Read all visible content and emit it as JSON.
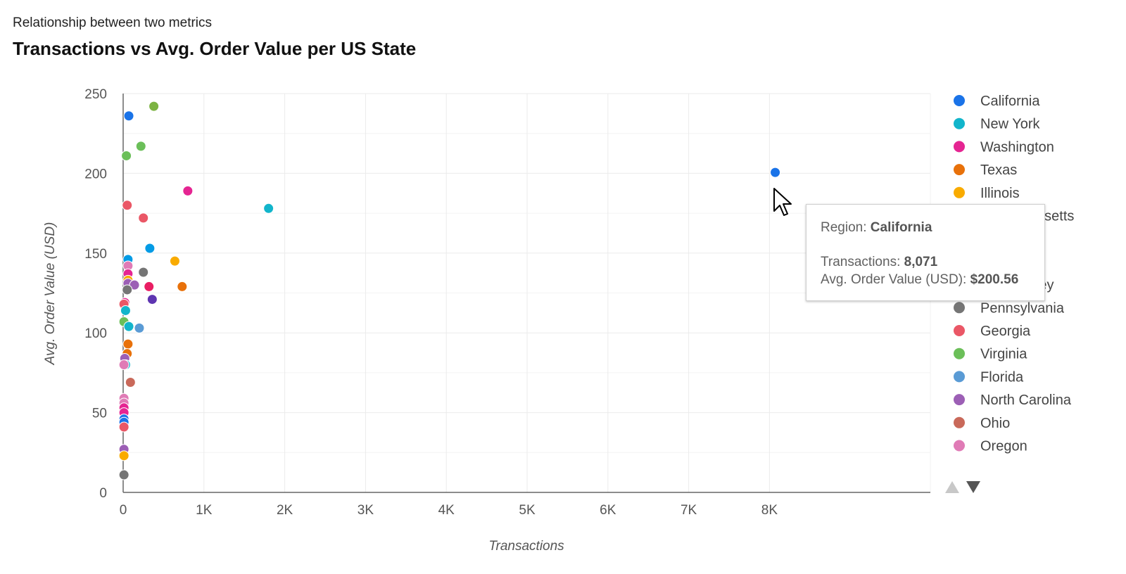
{
  "subtitle": "Relationship between two metrics",
  "title": "Transactions vs Avg. Order Value per US State",
  "chart_data": {
    "type": "scatter",
    "title": "Transactions vs Avg. Order Value per US State",
    "xlabel": "Transactions",
    "ylabel": "Avg. Order Value (USD)",
    "xlim": [
      0,
      10000
    ],
    "ylim": [
      0,
      250
    ],
    "x_ticks": [
      0,
      1000,
      2000,
      3000,
      4000,
      5000,
      6000,
      7000,
      8000
    ],
    "x_tick_labels": [
      "0",
      "1K",
      "2K",
      "3K",
      "4K",
      "5K",
      "6K",
      "7K",
      "8K"
    ],
    "y_ticks": [
      0,
      50,
      100,
      150,
      200,
      250
    ],
    "y_tick_labels": [
      "0",
      "50",
      "100",
      "150",
      "200",
      "250"
    ],
    "grid": true,
    "legend_position": "right",
    "legend": [
      {
        "name": "California",
        "color": "#1a73e8"
      },
      {
        "name": "New York",
        "color": "#12b5cb"
      },
      {
        "name": "Washington",
        "color": "#e52592"
      },
      {
        "name": "Texas",
        "color": "#e8710a"
      },
      {
        "name": "Illinois",
        "color": "#f9ab00"
      },
      {
        "name": "Massachusetts",
        "color": "#7cb342"
      },
      {
        "name": "",
        "color": "#5e35b1"
      },
      {
        "name": "",
        "color": "#039be5"
      },
      {
        "name": "New Jersey",
        "color": "#e91e63"
      },
      {
        "name": "Pennsylvania",
        "color": "#757575"
      },
      {
        "name": "Georgia",
        "color": "#ea5766"
      },
      {
        "name": "Virginia",
        "color": "#6bbf59"
      },
      {
        "name": "Florida",
        "color": "#5a9bd5"
      },
      {
        "name": "North Carolina",
        "color": "#9c5fb5"
      },
      {
        "name": "Ohio",
        "color": "#c9695a"
      },
      {
        "name": "Oregon",
        "color": "#e07bb6"
      }
    ],
    "points": [
      {
        "x": 8071,
        "y": 200.56,
        "color": "#1a73e8"
      },
      {
        "x": 70,
        "y": 236,
        "color": "#1a73e8"
      },
      {
        "x": 380,
        "y": 242,
        "color": "#7cb342"
      },
      {
        "x": 220,
        "y": 217,
        "color": "#6bbf59"
      },
      {
        "x": 40,
        "y": 211,
        "color": "#6bbf59"
      },
      {
        "x": 800,
        "y": 189,
        "color": "#e52592"
      },
      {
        "x": 1800,
        "y": 178,
        "color": "#12b5cb"
      },
      {
        "x": 50,
        "y": 180,
        "color": "#ea5766"
      },
      {
        "x": 250,
        "y": 172,
        "color": "#ea5766"
      },
      {
        "x": 330,
        "y": 153,
        "color": "#039be5"
      },
      {
        "x": 60,
        "y": 146,
        "color": "#039be5"
      },
      {
        "x": 640,
        "y": 145,
        "color": "#f9ab00"
      },
      {
        "x": 60,
        "y": 142,
        "color": "#e07bb6"
      },
      {
        "x": 250,
        "y": 138,
        "color": "#757575"
      },
      {
        "x": 60,
        "y": 137,
        "color": "#e52592"
      },
      {
        "x": 60,
        "y": 133,
        "color": "#f9ab00"
      },
      {
        "x": 60,
        "y": 131,
        "color": "#9c5fb5"
      },
      {
        "x": 140,
        "y": 130,
        "color": "#9c5fb5"
      },
      {
        "x": 320,
        "y": 129,
        "color": "#e91e63"
      },
      {
        "x": 730,
        "y": 129,
        "color": "#e8710a"
      },
      {
        "x": 50,
        "y": 127,
        "color": "#757575"
      },
      {
        "x": 360,
        "y": 121,
        "color": "#5e35b1"
      },
      {
        "x": 20,
        "y": 119,
        "color": "#e52592"
      },
      {
        "x": 10,
        "y": 118,
        "color": "#ea5766"
      },
      {
        "x": 30,
        "y": 114,
        "color": "#12b5cb"
      },
      {
        "x": 10,
        "y": 107,
        "color": "#6bbf59"
      },
      {
        "x": 70,
        "y": 104,
        "color": "#12b5cb"
      },
      {
        "x": 200,
        "y": 103,
        "color": "#5a9bd5"
      },
      {
        "x": 60,
        "y": 93,
        "color": "#e8710a"
      },
      {
        "x": 50,
        "y": 87,
        "color": "#e8710a"
      },
      {
        "x": 20,
        "y": 84,
        "color": "#9c5fb5"
      },
      {
        "x": 30,
        "y": 80,
        "color": "#12b5cb"
      },
      {
        "x": 10,
        "y": 80,
        "color": "#e07bb6"
      },
      {
        "x": 90,
        "y": 69,
        "color": "#c9695a"
      },
      {
        "x": 10,
        "y": 59,
        "color": "#e07bb6"
      },
      {
        "x": 10,
        "y": 56,
        "color": "#e07bb6"
      },
      {
        "x": 10,
        "y": 53,
        "color": "#e52592"
      },
      {
        "x": 10,
        "y": 50,
        "color": "#e52592"
      },
      {
        "x": 10,
        "y": 46,
        "color": "#1a73e8"
      },
      {
        "x": 10,
        "y": 44,
        "color": "#1a73e8"
      },
      {
        "x": 10,
        "y": 41,
        "color": "#ea5766"
      },
      {
        "x": 10,
        "y": 27,
        "color": "#9c5fb5"
      },
      {
        "x": 10,
        "y": 23,
        "color": "#f9ab00"
      },
      {
        "x": 10,
        "y": 11,
        "color": "#757575"
      }
    ]
  },
  "tooltip": {
    "region_label": "Region:",
    "region_value": "California",
    "transactions_label": "Transactions:",
    "transactions_value": "8,071",
    "aov_label": "Avg. Order Value (USD):",
    "aov_value": "$200.56"
  },
  "legend_pager": {
    "up_icon": "triangle-up",
    "down_icon": "triangle-down",
    "up_color": "#c8c8c8",
    "down_color": "#555555"
  }
}
